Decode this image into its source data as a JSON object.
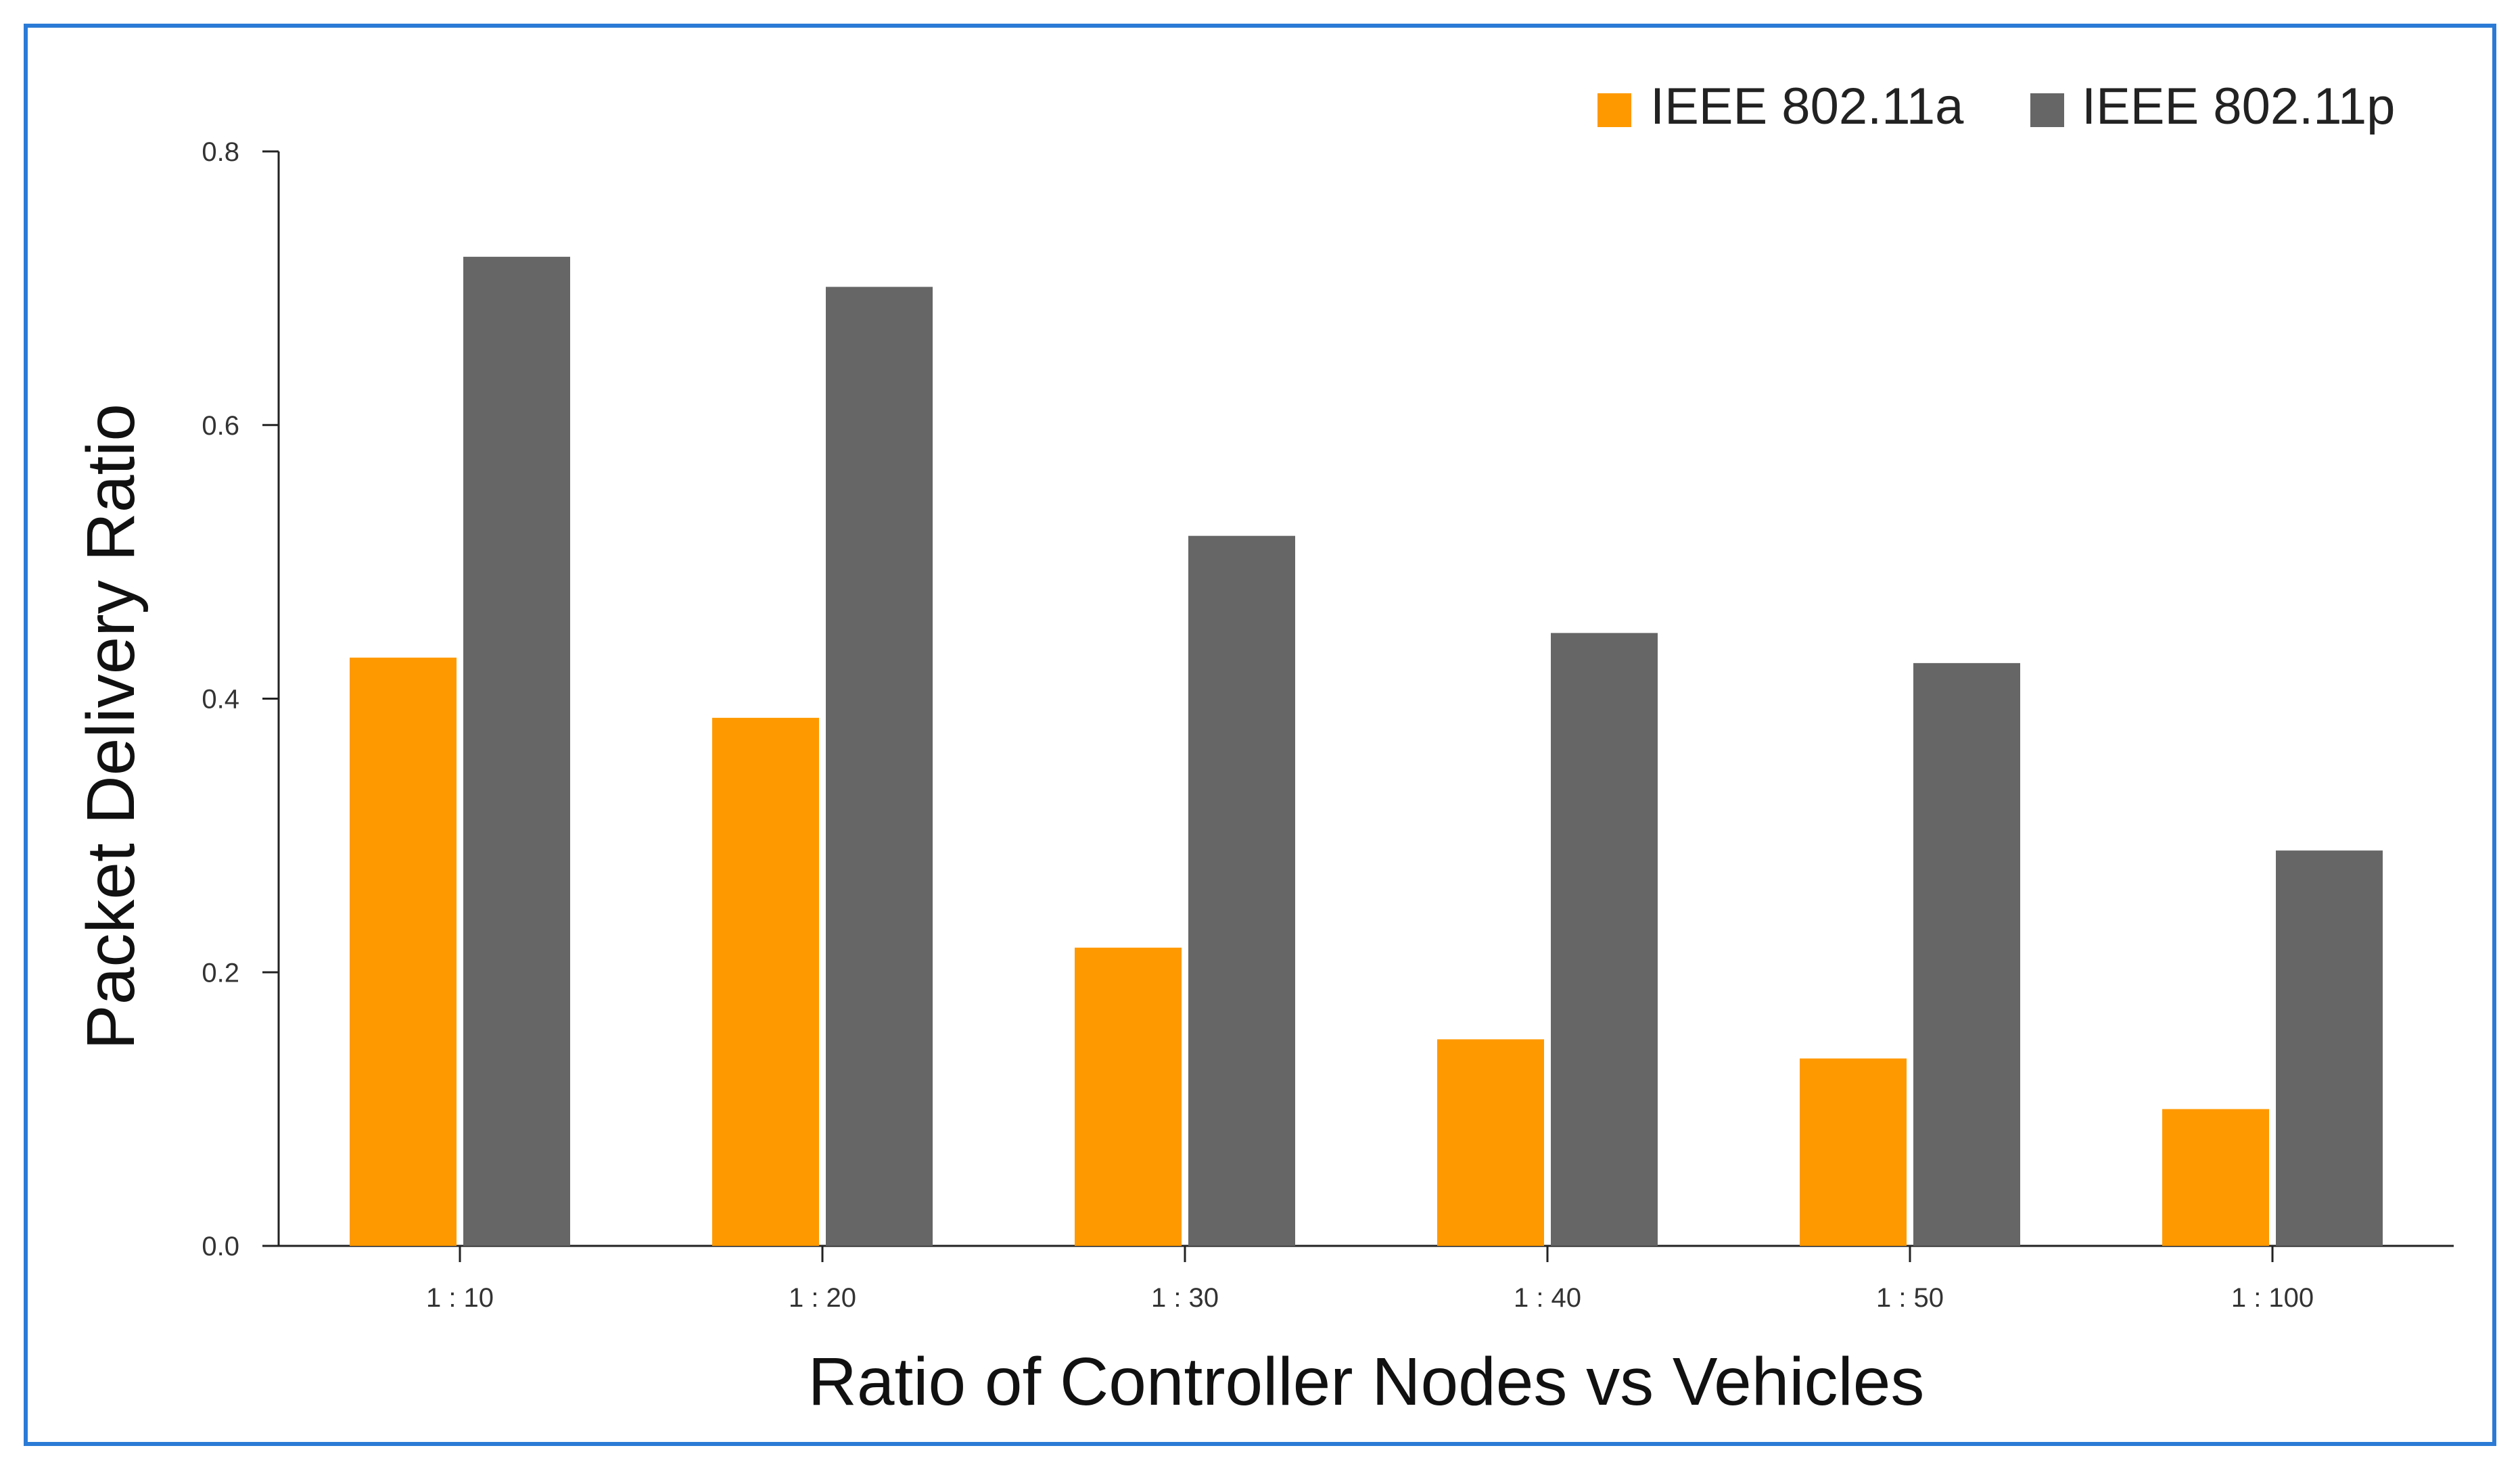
{
  "chart_data": {
    "type": "bar",
    "title": "",
    "xlabel": "Ratio of Controller Nodes vs Vehicles",
    "ylabel": "Packet Delivery Ratio",
    "ylim": [
      0,
      0.8
    ],
    "yticks": [
      "0.0",
      "0.2",
      "0.4",
      "0.6",
      "0.8"
    ],
    "categories": [
      "1 : 10",
      "1 : 20",
      "1 : 30",
      "1 : 40",
      "1 : 50",
      "1 : 100"
    ],
    "series": [
      {
        "name": "IEEE 802.11a",
        "color": "#ff9900",
        "values": [
          0.43,
          0.386,
          0.218,
          0.151,
          0.137,
          0.1
        ]
      },
      {
        "name": "IEEE 802.11p",
        "color": "#666666",
        "values": [
          0.723,
          0.701,
          0.519,
          0.448,
          0.426,
          0.289
        ]
      }
    ],
    "legend_position": "top-right",
    "grid": false,
    "frame_color": "#2b7bd6"
  }
}
